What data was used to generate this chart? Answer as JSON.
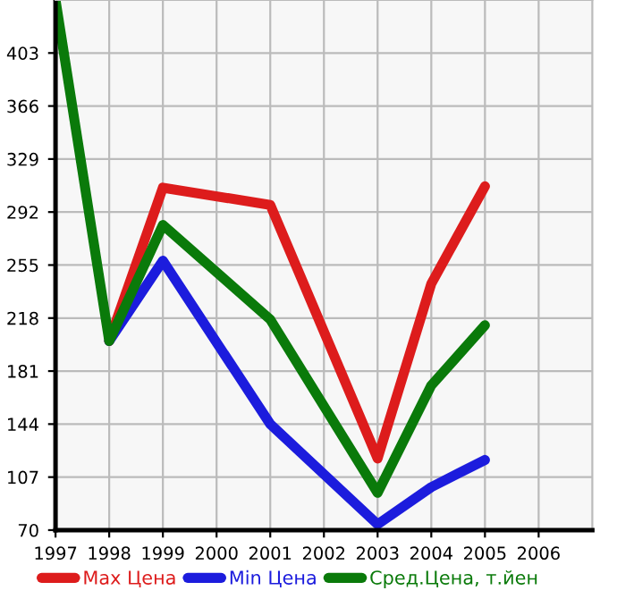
{
  "chart_data": {
    "type": "line",
    "x": [
      1997,
      1998,
      1999,
      2001,
      2003,
      2004,
      2005
    ],
    "series": [
      {
        "name": "Max Цена",
        "color": "#dd1c1c",
        "values": [
          null,
          202,
          309,
          297,
          120,
          242,
          310
        ]
      },
      {
        "name": "Min Цена",
        "color": "#1c1cdd",
        "values": [
          null,
          202,
          258,
          144,
          74,
          100,
          119
        ]
      },
      {
        "name": "Сред.Цена, т.йен",
        "color": "#0a7a0a",
        "values": [
          440,
          202,
          283,
          217,
          96,
          171,
          213
        ]
      }
    ],
    "xlim": [
      1997,
      2007
    ],
    "xticks": [
      1997,
      1998,
      1999,
      2000,
      2001,
      2002,
      2003,
      2004,
      2005,
      2006
    ],
    "ylim": [
      70,
      440
    ],
    "yticks": [
      70,
      107,
      144,
      181,
      218,
      255,
      292,
      329,
      366,
      403
    ],
    "grid": true,
    "legend": "bottom",
    "marker": "none",
    "line_style": "solid"
  }
}
